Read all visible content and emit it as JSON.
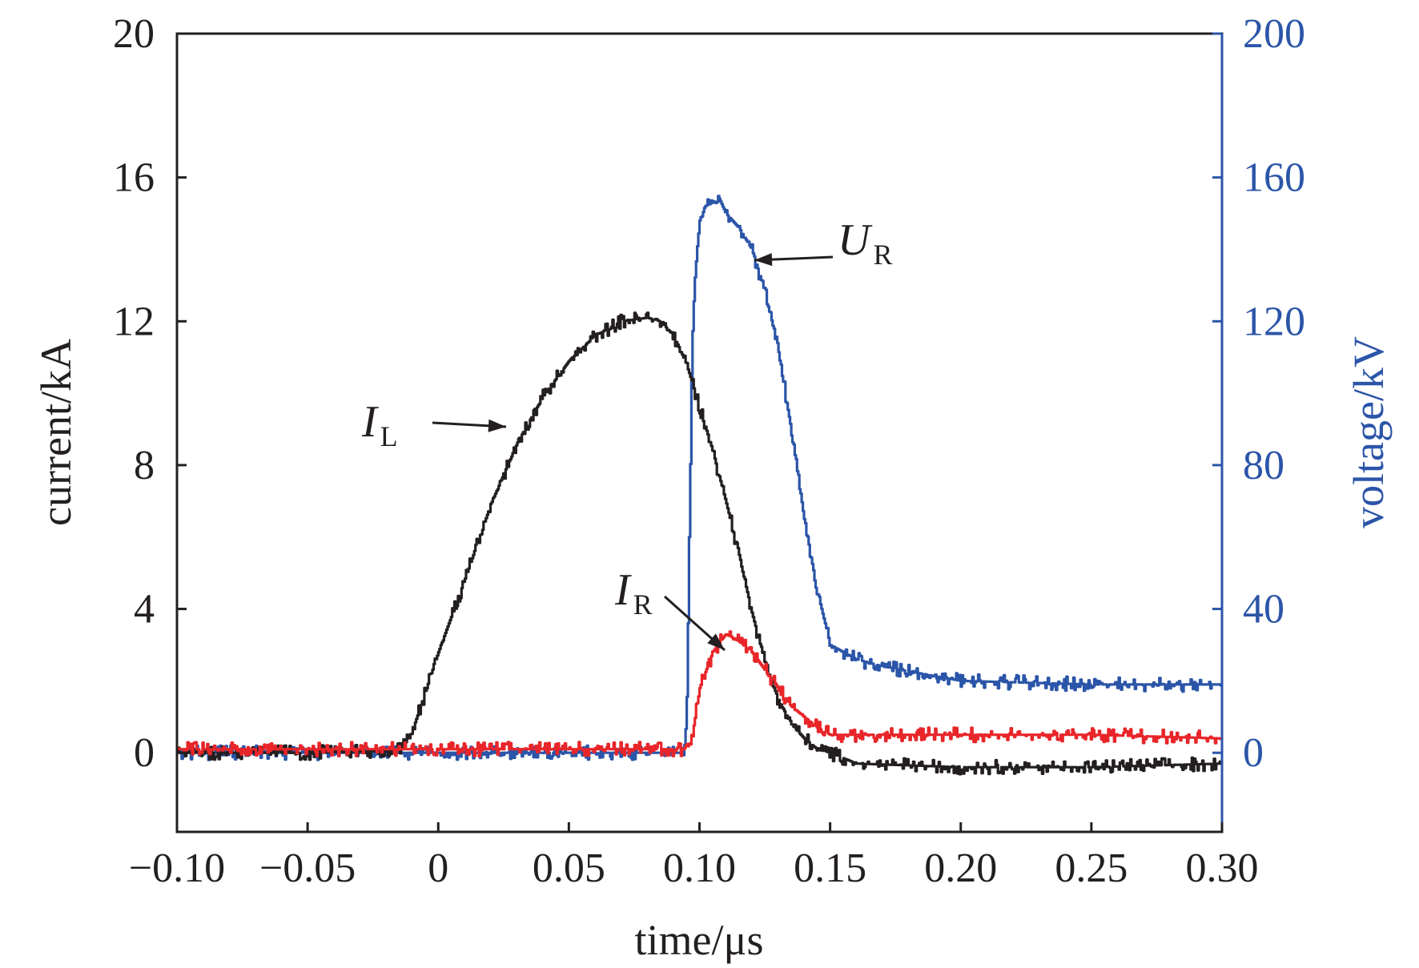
{
  "chart_data": {
    "type": "line",
    "xlabel": "time/μs",
    "ylabel": "current/kA",
    "y2label": "voltage/kV",
    "xlim": [
      -0.1,
      0.3
    ],
    "ylim": [
      -2.2,
      20
    ],
    "y2lim": [
      -22,
      200
    ],
    "x_ticks": [
      -0.1,
      -0.05,
      0,
      0.05,
      0.1,
      0.15,
      0.2,
      0.25,
      0.3
    ],
    "x_tick_labels": [
      "−0.10",
      "−0.05",
      "0",
      "0.05",
      "0.10",
      "0.15",
      "0.20",
      "0.25",
      "0.30"
    ],
    "y_ticks": [
      0,
      4,
      8,
      12,
      16,
      20
    ],
    "y_tick_labels": [
      "0",
      "4",
      "8",
      "12",
      "16",
      "20"
    ],
    "y2_ticks": [
      0,
      40,
      80,
      120,
      160,
      200
    ],
    "y2_tick_labels": [
      "0",
      "40",
      "80",
      "120",
      "160",
      "200"
    ],
    "grid": false,
    "colors": {
      "axis": "#231f20",
      "right_axis": "#2b55a8"
    },
    "series": [
      {
        "name": "I_L",
        "label_main": "I",
        "label_sub": "L",
        "axis": "left",
        "color": "#231f20",
        "x": [
          -0.1,
          -0.05,
          -0.02,
          -0.014,
          -0.01,
          0.0,
          0.01,
          0.02,
          0.03,
          0.04,
          0.05,
          0.06,
          0.07,
          0.08,
          0.085,
          0.09,
          0.095,
          0.1,
          0.105,
          0.11,
          0.115,
          0.12,
          0.125,
          0.13,
          0.135,
          0.14,
          0.145,
          0.15,
          0.16,
          0.2,
          0.25,
          0.3
        ],
        "y": [
          0.0,
          0.0,
          0.05,
          0.1,
          0.6,
          2.8,
          4.8,
          6.9,
          8.6,
          9.9,
          10.9,
          11.6,
          12.0,
          12.1,
          12.0,
          11.6,
          10.8,
          9.6,
          8.4,
          7.0,
          5.5,
          3.9,
          2.5,
          1.5,
          0.8,
          0.4,
          0.1,
          0.0,
          -0.3,
          -0.4,
          -0.4,
          -0.3
        ],
        "noise": 0.2
      },
      {
        "name": "I_R",
        "label_main": "I",
        "label_sub": "R",
        "axis": "left",
        "color": "#e8262a",
        "x": [
          -0.1,
          0.0,
          0.05,
          0.095,
          0.097,
          0.1,
          0.105,
          0.11,
          0.115,
          0.12,
          0.125,
          0.13,
          0.135,
          0.14,
          0.145,
          0.15,
          0.16,
          0.2,
          0.25,
          0.3
        ],
        "y": [
          0.1,
          0.1,
          0.1,
          0.1,
          0.4,
          1.8,
          2.8,
          3.3,
          3.1,
          2.8,
          2.3,
          1.8,
          1.3,
          1.0,
          0.7,
          0.5,
          0.5,
          0.5,
          0.5,
          0.4
        ],
        "noise": 0.2
      },
      {
        "name": "U_R",
        "label_main": "U",
        "label_sub": "R",
        "axis": "right",
        "color": "#2b55a8",
        "x": [
          -0.1,
          0.0,
          0.05,
          0.094,
          0.095,
          0.096,
          0.097,
          0.098,
          0.099,
          0.1,
          0.102,
          0.105,
          0.107,
          0.11,
          0.115,
          0.12,
          0.125,
          0.13,
          0.135,
          0.14,
          0.145,
          0.15,
          0.16,
          0.17,
          0.2,
          0.25,
          0.3
        ],
        "y": [
          0.0,
          0.0,
          0.0,
          0.0,
          10.0,
          60.0,
          110.0,
          130.0,
          140.0,
          148.0,
          152.0,
          153.0,
          155.0,
          150.0,
          146.0,
          140.0,
          128.0,
          112.0,
          90.0,
          65.0,
          45.0,
          30.0,
          26.0,
          24.0,
          20.0,
          19.0,
          19.0
        ],
        "noise": 2.0
      }
    ],
    "annotations": [
      {
        "series": "I_L",
        "main": "I",
        "sub": "L",
        "points_to": [
          0.022,
          8.0
        ]
      },
      {
        "series": "I_R",
        "main": "I",
        "sub": "R",
        "points_to": [
          0.105,
          3.2
        ]
      },
      {
        "series": "U_R",
        "main": "U",
        "sub": "R",
        "points_to": [
          0.119,
          136.0
        ]
      }
    ]
  }
}
